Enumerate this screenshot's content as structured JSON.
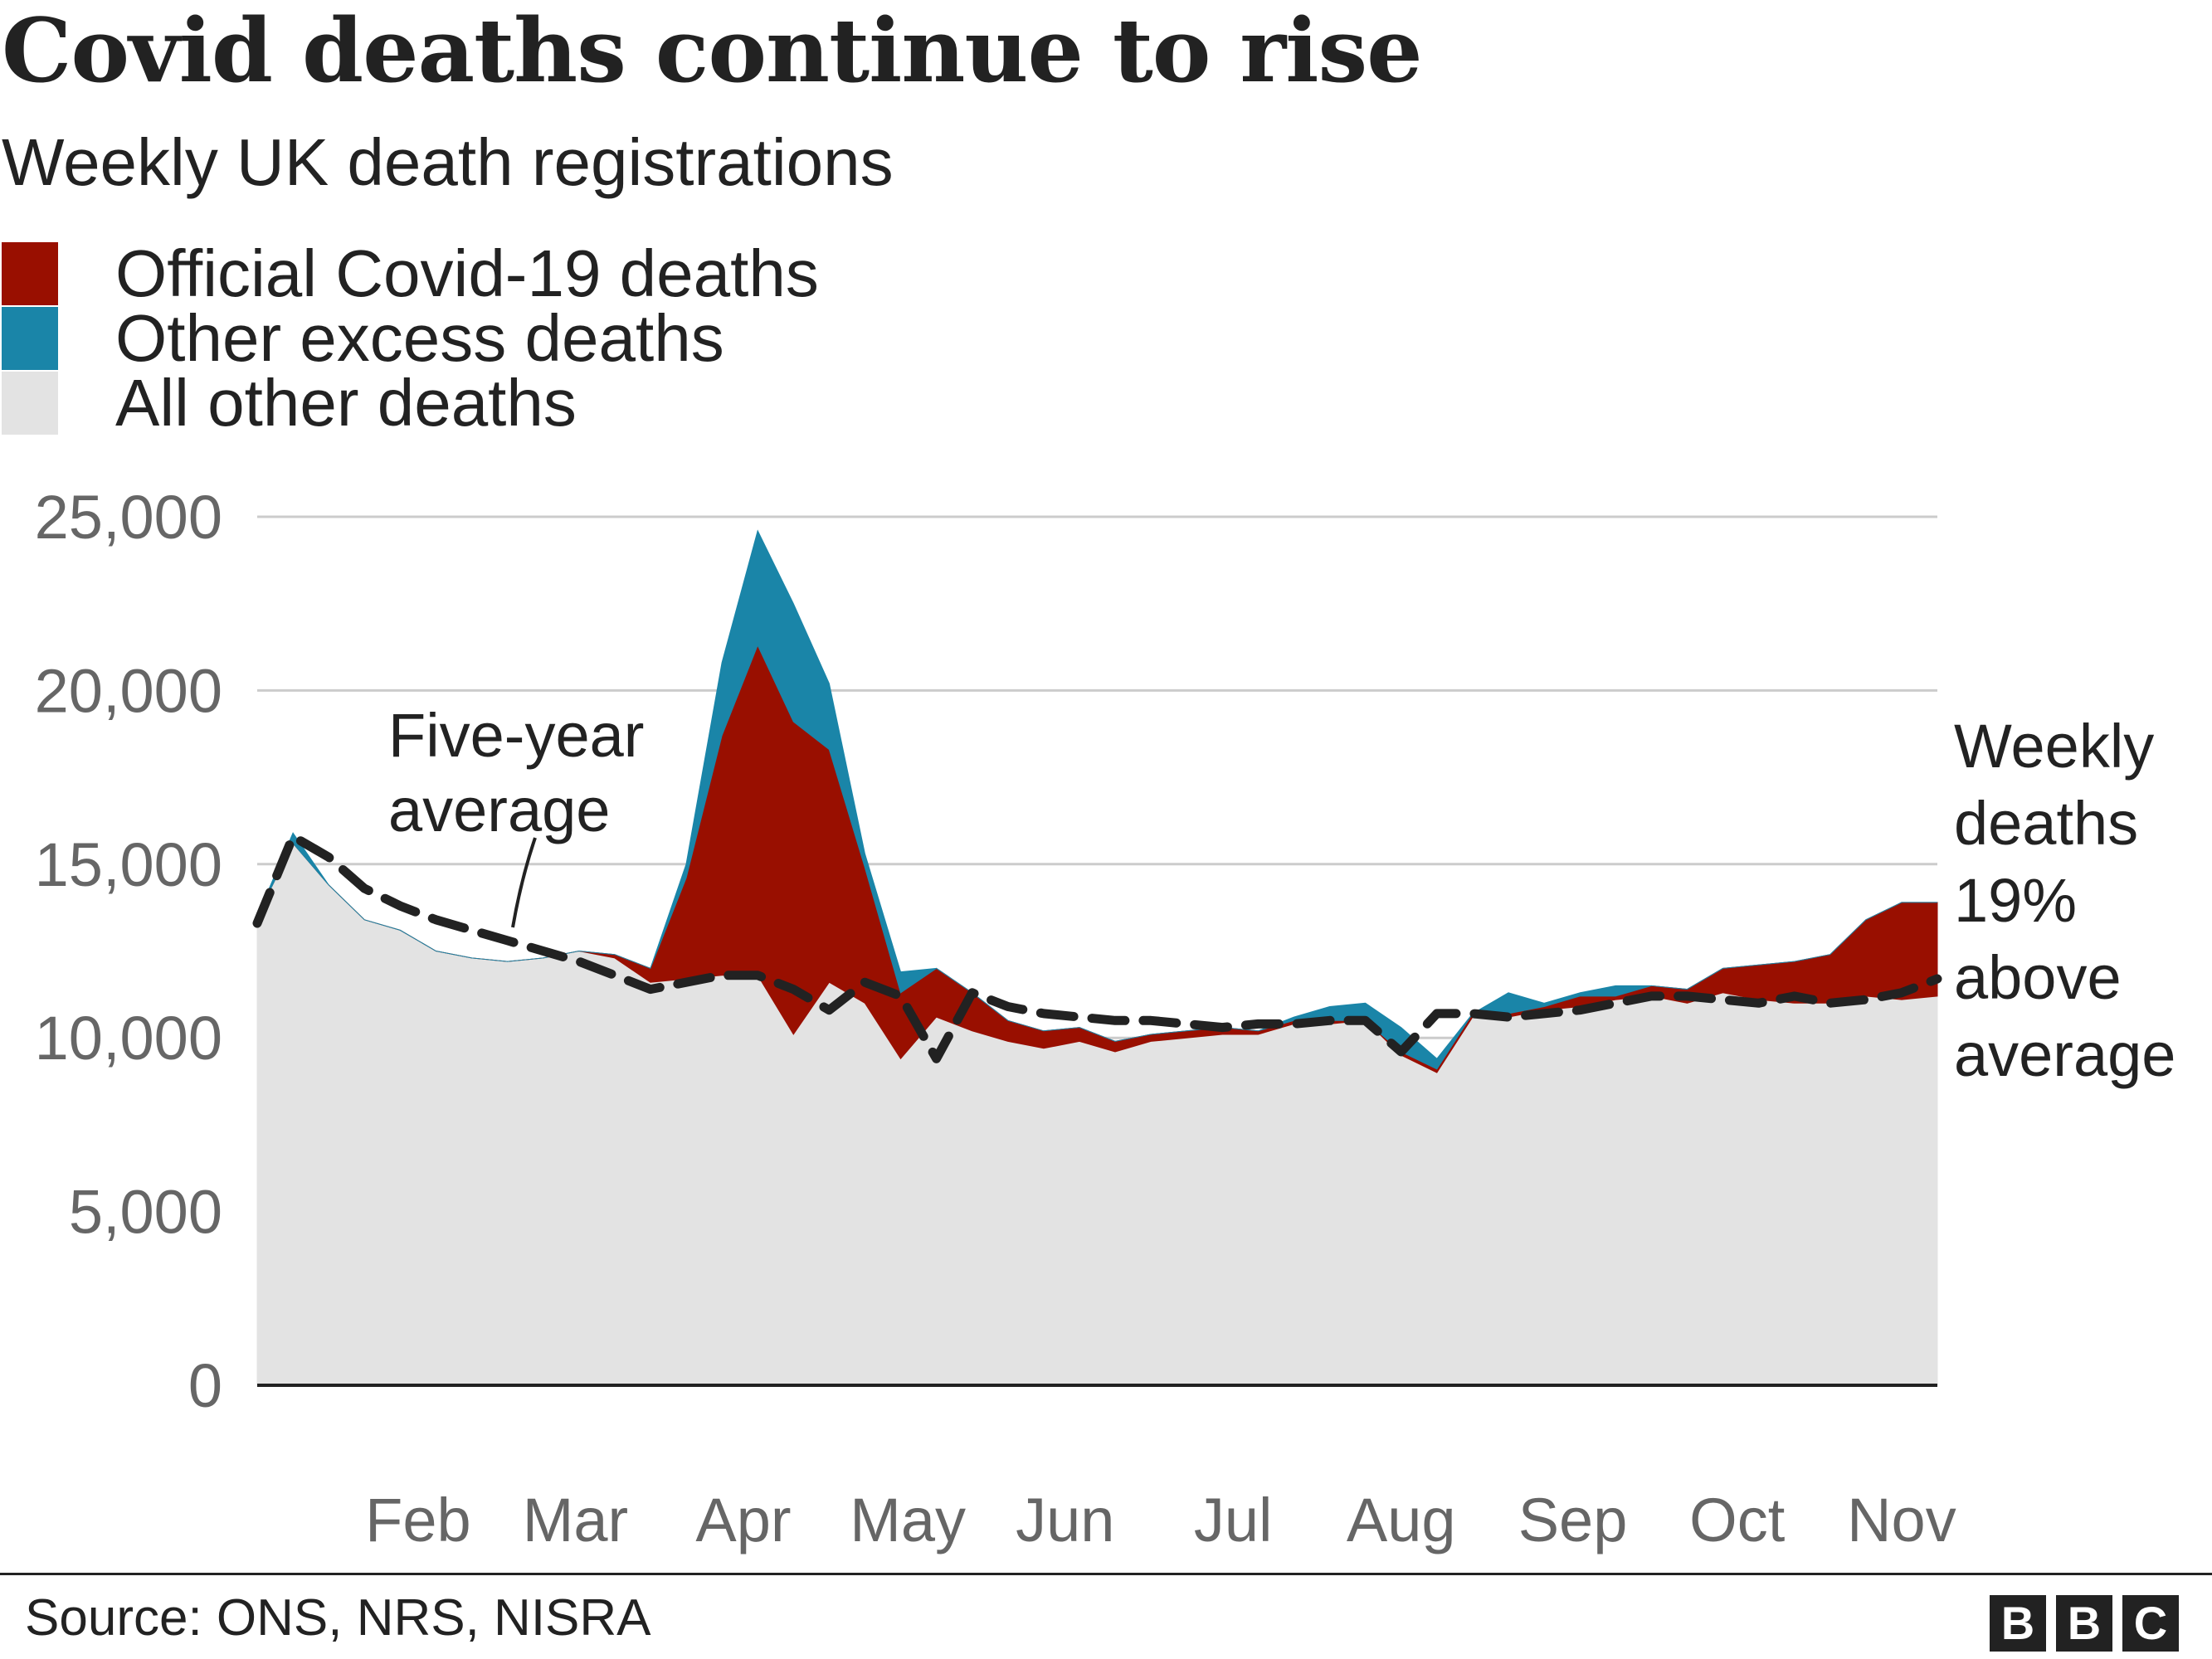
{
  "title": "Covid deaths continue to rise",
  "subtitle": "Weekly UK death registrations",
  "legend": [
    {
      "label": "Official Covid-19 deaths",
      "color": "#990f00"
    },
    {
      "label": "Other excess deaths",
      "color": "#1a85a8"
    },
    {
      "label": "All other deaths",
      "color": "#e3e3e3"
    }
  ],
  "annotations": {
    "five_year": [
      "Five-year",
      "average"
    ],
    "weekly": [
      "Weekly",
      "deaths",
      "19%",
      "above",
      "average"
    ]
  },
  "source": "Source: ONS, NRS, NISRA",
  "logo": [
    "B",
    "B",
    "C"
  ],
  "chart_data": {
    "type": "area",
    "x_label_positions_note": "weeks 1-48",
    "weeks": [
      1,
      2,
      3,
      4,
      5,
      6,
      7,
      8,
      9,
      10,
      11,
      12,
      13,
      14,
      15,
      16,
      17,
      18,
      19,
      20,
      21,
      22,
      23,
      24,
      25,
      26,
      27,
      28,
      29,
      30,
      31,
      32,
      33,
      34,
      35,
      36,
      37,
      38,
      39,
      40,
      41,
      42,
      43,
      44,
      45,
      46,
      47,
      48
    ],
    "month_ticks": [
      {
        "label": "Feb",
        "week": 5.5
      },
      {
        "label": "Mar",
        "week": 9.9
      },
      {
        "label": "Apr",
        "week": 14.6
      },
      {
        "label": "May",
        "week": 19.2
      },
      {
        "label": "Jun",
        "week": 23.6
      },
      {
        "label": "Jul",
        "week": 28.3
      },
      {
        "label": "Aug",
        "week": 33.0
      },
      {
        "label": "Sep",
        "week": 37.8
      },
      {
        "label": "Oct",
        "week": 42.4
      },
      {
        "label": "Nov",
        "week": 47.0
      }
    ],
    "series": [
      {
        "name": "All other deaths",
        "color": "#e3e3e3",
        "values": [
          13500,
          15600,
          14400,
          13400,
          13100,
          12500,
          12300,
          12200,
          12300,
          12500,
          12300,
          11600,
          11700,
          11800,
          11800,
          10100,
          11600,
          11000,
          9400,
          10600,
          10200,
          9900,
          9700,
          9900,
          9600,
          9900,
          10000,
          10100,
          10100,
          10400,
          10400,
          10500,
          9500,
          9000,
          10600,
          10600,
          10800,
          10900,
          11100,
          11200,
          11000,
          11300,
          11100,
          11000,
          11000,
          11200,
          11100,
          11200
        ]
      },
      {
        "name": "Official Covid-19 deaths",
        "color": "#990f00",
        "values": [
          0,
          0,
          0,
          0,
          0,
          0,
          0,
          0,
          0,
          0,
          100,
          400,
          2900,
          6900,
          9500,
          9000,
          6700,
          3900,
          1900,
          1400,
          1100,
          600,
          500,
          400,
          300,
          200,
          200,
          200,
          100,
          100,
          100,
          0,
          100,
          100,
          100,
          100,
          100,
          300,
          100,
          300,
          400,
          700,
          1000,
          1200,
          1400,
          2200,
          2800,
          2700
        ]
      },
      {
        "name": "Other excess deaths",
        "color": "#1a85a8",
        "values": [
          0,
          300,
          0,
          0,
          0,
          0,
          0,
          0,
          0,
          0,
          0,
          0,
          400,
          2100,
          3300,
          3400,
          1900,
          400,
          600,
          0,
          0,
          0,
          0,
          0,
          0,
          0,
          0,
          0,
          0,
          100,
          400,
          500,
          700,
          300,
          0,
          600,
          100,
          100,
          300,
          0,
          0,
          0,
          0,
          0,
          0,
          0,
          0,
          0
        ]
      }
    ],
    "five_year_average": [
      13300,
      15800,
      15200,
      14300,
      13800,
      13400,
      13100,
      12800,
      12500,
      12200,
      11800,
      11400,
      11600,
      11800,
      11800,
      11400,
      10800,
      11600,
      11200,
      9400,
      11300,
      10900,
      10700,
      10600,
      10500,
      10500,
      10400,
      10300,
      10400,
      10400,
      10500,
      10500,
      9600,
      10700,
      10700,
      10600,
      10700,
      10800,
      11000,
      11200,
      11200,
      11100,
      11000,
      11200,
      11000,
      11100,
      11300,
      11700
    ],
    "y_ticks": [
      0,
      5000,
      10000,
      15000,
      20000,
      25000
    ],
    "ylim": [
      0,
      25000
    ]
  }
}
